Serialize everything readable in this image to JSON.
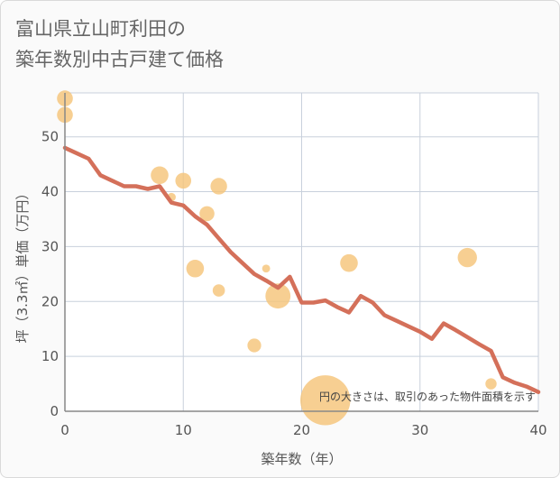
{
  "header": {
    "title_line1": "富山県立山町利田の",
    "title_line2": "築年数別中古戸建て価格"
  },
  "chart_data": {
    "type": "scatter",
    "xlabel": "築年数（年）",
    "ylabel": "坪（3.3㎡）単価（万円）",
    "xlim": [
      0,
      40
    ],
    "ylim": [
      0,
      58
    ],
    "x_ticks": [
      0,
      10,
      20,
      30,
      40
    ],
    "y_ticks": [
      0,
      10,
      20,
      30,
      40,
      50
    ],
    "grid": true,
    "note": "円の大きさは、取引のあった物件面積を示す",
    "colors": {
      "bubble": "#f5c57a",
      "line": "#d4705a",
      "grid": "#c8d0dc",
      "axis": "#888888"
    },
    "points": [
      {
        "x": 0,
        "y": 57,
        "size": 2
      },
      {
        "x": 0,
        "y": 54,
        "size": 2
      },
      {
        "x": 8,
        "y": 43,
        "size": 2.5
      },
      {
        "x": 9,
        "y": 39,
        "size": 0.6
      },
      {
        "x": 10,
        "y": 42,
        "size": 2
      },
      {
        "x": 11,
        "y": 26,
        "size": 2.5
      },
      {
        "x": 12,
        "y": 36,
        "size": 1.8
      },
      {
        "x": 13,
        "y": 41,
        "size": 2.2
      },
      {
        "x": 13,
        "y": 22,
        "size": 1.2
      },
      {
        "x": 16,
        "y": 12,
        "size": 1.5
      },
      {
        "x": 17,
        "y": 26,
        "size": 0.5
      },
      {
        "x": 18,
        "y": 21,
        "size": 5
      },
      {
        "x": 22,
        "y": 2,
        "size": 20
      },
      {
        "x": 24,
        "y": 27,
        "size": 2.5
      },
      {
        "x": 34,
        "y": 28,
        "size": 3
      },
      {
        "x": 36,
        "y": 5,
        "size": 1
      }
    ],
    "trend": {
      "x": [
        0,
        1,
        2,
        3,
        4,
        5,
        6,
        7,
        8,
        9,
        10,
        11,
        12,
        13,
        14,
        15,
        16,
        17,
        18,
        19,
        20,
        21,
        22,
        23,
        24,
        25,
        26,
        27,
        28,
        29,
        30,
        31,
        32,
        33,
        34,
        35,
        36,
        37,
        38,
        39,
        40
      ],
      "y": [
        48,
        47,
        46,
        43,
        42,
        41,
        41,
        40.5,
        41,
        38,
        37.5,
        35.5,
        34,
        31.5,
        29,
        27,
        25,
        23.8,
        22.5,
        24.5,
        19.8,
        19.8,
        20.2,
        19,
        18,
        21,
        19.8,
        17.5,
        16.5,
        15.5,
        14.5,
        13.2,
        16,
        14.8,
        13.5,
        12.2,
        11,
        6.2,
        5.2,
        4.5,
        3.5
      ]
    }
  }
}
